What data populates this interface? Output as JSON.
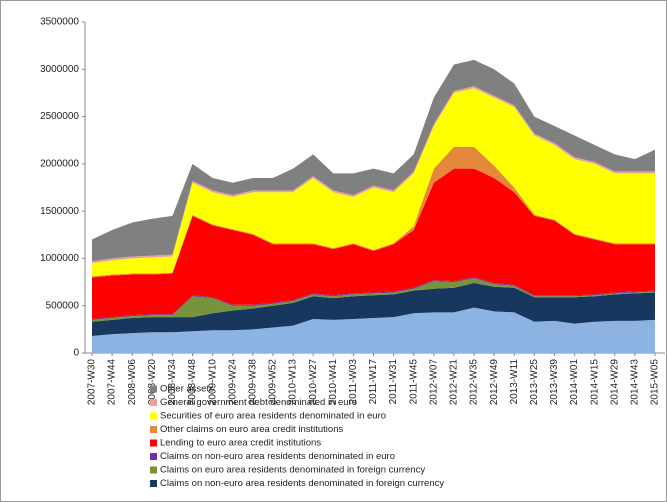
{
  "chart_data": {
    "type": "stacked_area",
    "categories": [
      "2007-W30",
      "2007-W44",
      "2008-W06",
      "2008-W20",
      "2008-W34",
      "2008-W48",
      "2009-W10",
      "2009-W24",
      "2009-W38",
      "2009-W52",
      "2010-W13",
      "2010-W27",
      "2010-W41",
      "2011-W03",
      "2011-W17",
      "2011-W31",
      "2011-W45",
      "2012-W07",
      "2012-W21",
      "2012-W35",
      "2012-W49",
      "2013-W11",
      "2013-W25",
      "2013-W39",
      "2014-W01",
      "2014-W15",
      "2014-W29",
      "2014-W43",
      "2015-W05"
    ],
    "series": [
      {
        "color": "#8db3e2",
        "values": [
          180000,
          200000,
          210000,
          220000,
          220000,
          230000,
          240000,
          240000,
          250000,
          270000,
          290000,
          360000,
          350000,
          360000,
          370000,
          380000,
          420000,
          430000,
          430000,
          480000,
          440000,
          430000,
          330000,
          340000,
          310000,
          330000,
          340000,
          340000,
          350000
        ]
      },
      {
        "name": "Claims on non-euro area residents denominated in foreign currency",
        "color": "#17375e",
        "values": [
          150000,
          150000,
          160000,
          160000,
          160000,
          150000,
          180000,
          210000,
          220000,
          230000,
          240000,
          240000,
          230000,
          240000,
          240000,
          240000,
          240000,
          250000,
          260000,
          260000,
          260000,
          260000,
          260000,
          250000,
          280000,
          270000,
          280000,
          290000,
          290000
        ]
      },
      {
        "name": "Claims on euro area residents denominated in foreign currency",
        "color": "#77933c",
        "values": [
          20000,
          20000,
          20000,
          20000,
          20000,
          220000,
          160000,
          50000,
          30000,
          20000,
          20000,
          20000,
          20000,
          20000,
          20000,
          20000,
          20000,
          80000,
          60000,
          50000,
          30000,
          20000,
          10000,
          10000,
          10000,
          10000,
          10000,
          10000,
          10000
        ]
      },
      {
        "name": "Claims on non-euro area residents denominated in euro",
        "color": "#7030a0",
        "values": [
          10000,
          10000,
          10000,
          10000,
          10000,
          10000,
          10000,
          10000,
          10000,
          10000,
          10000,
          10000,
          10000,
          10000,
          10000,
          10000,
          10000,
          10000,
          10000,
          10000,
          10000,
          10000,
          10000,
          10000,
          10000,
          10000,
          10000,
          10000,
          10000
        ]
      },
      {
        "name": "Lending to euro area credit institutions",
        "color": "#ff0000",
        "values": [
          440000,
          440000,
          430000,
          420000,
          430000,
          840000,
          760000,
          790000,
          740000,
          620000,
          590000,
          520000,
          490000,
          520000,
          440000,
          500000,
          610000,
          1030000,
          1190000,
          1150000,
          1110000,
          980000,
          840000,
          790000,
          640000,
          580000,
          510000,
          500000,
          490000
        ]
      },
      {
        "name": "Other claims on euro area credit institutions",
        "color": "#e4883c",
        "values": [
          10000,
          10000,
          10000,
          10000,
          10000,
          10000,
          10000,
          10000,
          10000,
          10000,
          10000,
          10000,
          10000,
          10000,
          10000,
          10000,
          40000,
          150000,
          230000,
          230000,
          130000,
          50000,
          10000,
          10000,
          10000,
          10000,
          10000,
          10000,
          10000
        ]
      },
      {
        "name": "Securities of euro area residents denominated in euro",
        "color": "#ffff00",
        "values": [
          140000,
          150000,
          160000,
          170000,
          170000,
          340000,
          340000,
          340000,
          440000,
          540000,
          540000,
          690000,
          590000,
          490000,
          660000,
          540000,
          560000,
          450000,
          570000,
          620000,
          720000,
          850000,
          840000,
          790000,
          790000,
          790000,
          740000,
          740000,
          740000
        ]
      },
      {
        "name": "General government debt denominated in euro",
        "color": "#e6a0a0",
        "values": [
          20000,
          20000,
          20000,
          20000,
          20000,
          20000,
          20000,
          20000,
          20000,
          20000,
          20000,
          20000,
          20000,
          20000,
          20000,
          20000,
          20000,
          20000,
          20000,
          20000,
          20000,
          20000,
          20000,
          20000,
          20000,
          20000,
          20000,
          20000,
          20000
        ]
      },
      {
        "name": "Other assets",
        "color": "#808080",
        "values": [
          230000,
          300000,
          360000,
          390000,
          410000,
          180000,
          130000,
          130000,
          130000,
          130000,
          230000,
          230000,
          180000,
          230000,
          180000,
          180000,
          180000,
          280000,
          280000,
          280000,
          280000,
          230000,
          180000,
          180000,
          230000,
          180000,
          180000,
          130000,
          230000
        ]
      }
    ],
    "ylim": [
      0,
      3500000
    ],
    "yticks": [
      0,
      500000,
      1000000,
      1500000,
      2000000,
      2500000,
      3000000,
      3500000
    ]
  }
}
